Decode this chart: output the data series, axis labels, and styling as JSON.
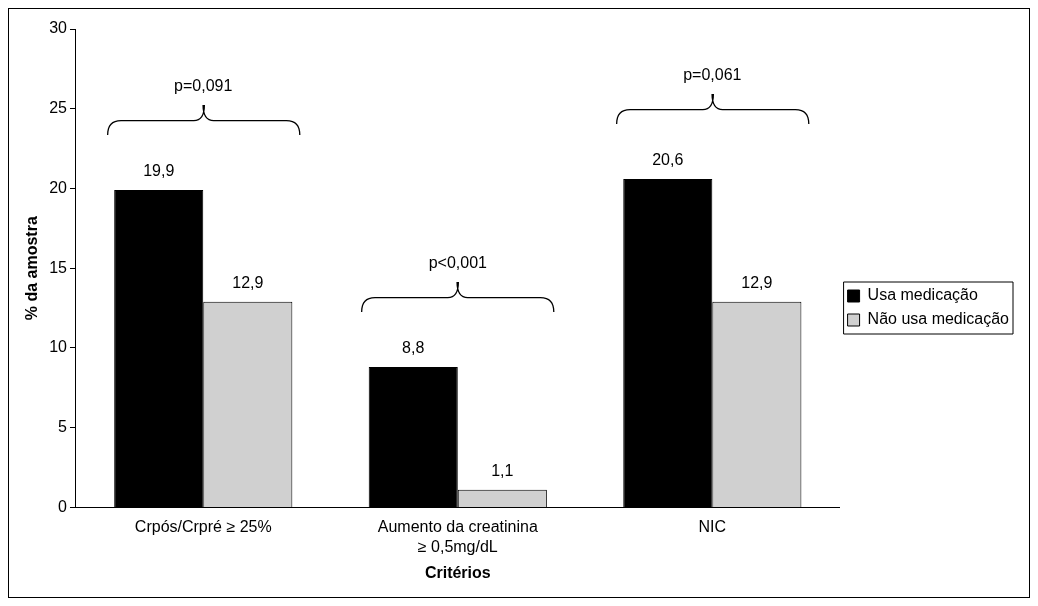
{
  "chart_data": {
    "type": "bar",
    "xlabel": "Critérios",
    "ylabel": "% da amostra",
    "categories": [
      "Crpós/Crpré ≥ 25%",
      "Aumento da creatinina\n≥ 0,5mg/dL",
      "NIC"
    ],
    "series": [
      {
        "name": "Usa medicação",
        "color": "#000000",
        "values": [
          19.9,
          8.8,
          20.6
        ],
        "value_labels": [
          "19,9",
          "8,8",
          "20,6"
        ]
      },
      {
        "name": "Não usa medicação",
        "color": "#d0d0d0",
        "values": [
          12.9,
          1.1,
          12.9
        ],
        "value_labels": [
          "12,9",
          "1,1",
          "12,9"
        ]
      }
    ],
    "ylim": [
      0,
      30
    ],
    "yticks": [
      0,
      5,
      10,
      15,
      20,
      25,
      30
    ],
    "grid": false,
    "legend": "right",
    "annotations": [
      "p=0,091",
      "p<0,001",
      "p=0,061"
    ]
  }
}
